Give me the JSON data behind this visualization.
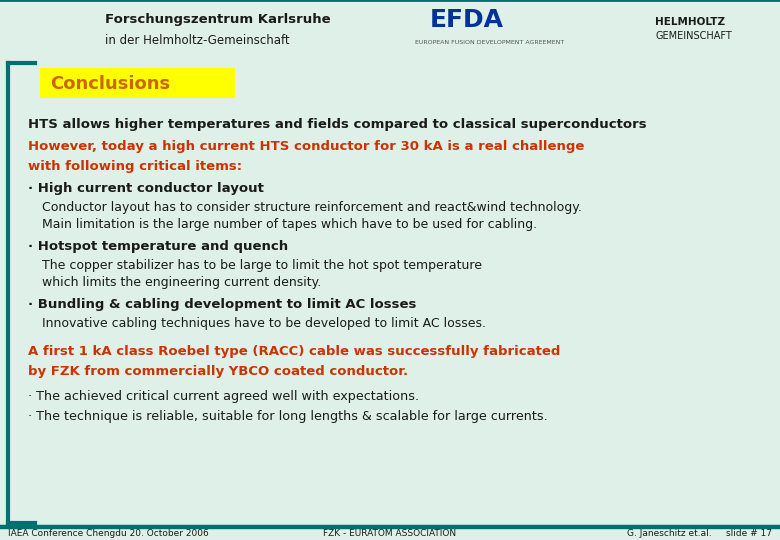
{
  "bg_color": "#dff0e8",
  "header_bg": "#ffffff",
  "teal_color": "#007070",
  "yellow_box_color": "#ffff00",
  "title_text": "Conclusions",
  "title_color": "#cc6600",
  "title_fontsize": 13,
  "black": "#1a1a1a",
  "orange": "#cc3300",
  "line1": "HTS allows higher temperatures and fields compared to classical superconductors",
  "line2": "However, today a high current HTS conductor for 30 kA is a real challenge",
  "line3": "with following critical items:",
  "b1h": "· High current conductor layout",
  "b1s1": "Conductor layout has to consider structure reinforcement and react&wind technology.",
  "b1s2": "Main limitation is the large number of tapes which have to be used for cabling.",
  "b2h": "· Hotspot temperature and quench",
  "b2s1": "The copper stabilizer has to be large to limit the hot spot temperature",
  "b2s2": "which limits the engineering current density.",
  "b3h": "· Bundling & cabling development to limit AC losses",
  "b3s1": "Innovative cabling techniques have to be developed to limit AC losses.",
  "ob1": "A first 1 kA class Roebel type (RACC) cable was successfully fabricated",
  "ob2": "by FZK from commercially YBCO coated conductor.",
  "fb1": "· The achieved critical current agreed well with expectations.",
  "fb2": "· The technique is reliable, suitable for long lengths & scalable for large currents.",
  "footer_left": "IAEA Conference Chengdu 20. October 2006",
  "footer_center": "FZK - EURATOM ASSOCIATION",
  "footer_right": "G. Janeschitz et.al.     slide # 17",
  "header_text1": "Forschungszentrum Karlsruhe",
  "header_text2": "in der Helmholtz-Gemeinschaft",
  "efda_text": "EFDA",
  "efda_sub": "EUROPEAN FUSION DEVELOPMENT AGREEMENT",
  "helm_text1": "HELMHOLTZ",
  "helm_text2": "GEMEINSCHAFT"
}
